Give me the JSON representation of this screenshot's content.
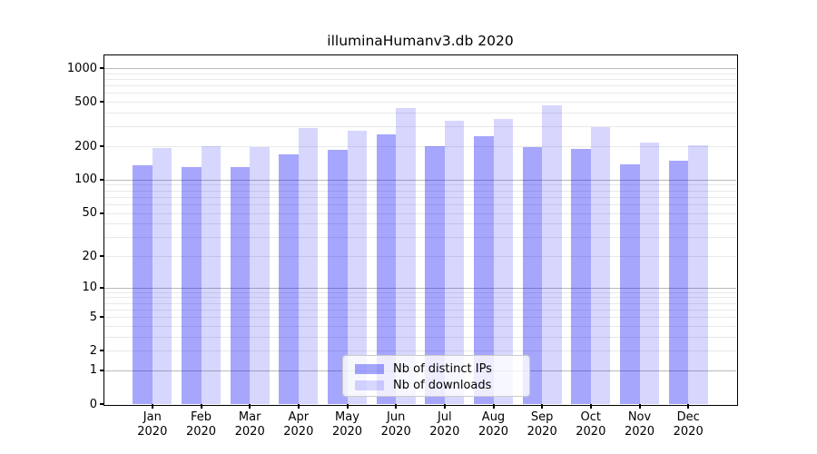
{
  "chart_data": {
    "type": "bar",
    "title": "illuminaHumanv3.db 2020",
    "scale": "log1p",
    "grid": true,
    "legend_position": "lower center",
    "ylim": [
      0,
      1300
    ],
    "y_ticks": [
      0,
      1,
      2,
      5,
      10,
      20,
      50,
      100,
      200,
      500,
      1000
    ],
    "grid_major_values": [
      1,
      10,
      100,
      1000
    ],
    "categories": [
      "Jan",
      "Feb",
      "Mar",
      "Apr",
      "May",
      "Jun",
      "Jul",
      "Aug",
      "Sep",
      "Oct",
      "Nov",
      "Dec"
    ],
    "year": "2020",
    "series": [
      {
        "key": "ips",
        "name": "Nb of distinct IPs",
        "color": "rgba(0,0,250,0.35)",
        "legend_color": "#a6a6fa",
        "values": [
          135,
          131,
          130,
          170,
          185,
          257,
          201,
          246,
          198,
          189,
          138,
          149
        ]
      },
      {
        "key": "downloads",
        "name": "Nb of downloads",
        "color": "rgba(0,0,250,0.155)",
        "legend_color": "#d7d7fa",
        "values": [
          193,
          201,
          196,
          292,
          275,
          437,
          336,
          351,
          466,
          297,
          215,
          203
        ]
      }
    ]
  },
  "colors": {
    "background": "#ffffff",
    "spine": "#000000",
    "grid_major": "#b9b9b9",
    "grid_minor": "#e9e9e9",
    "legend_border": "#cccccc",
    "text": "#000000"
  }
}
